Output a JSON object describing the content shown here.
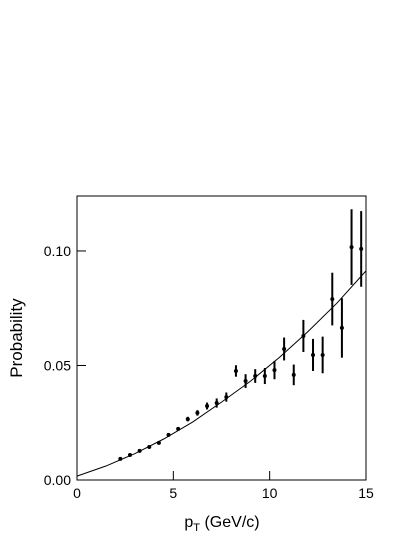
{
  "chart_data": {
    "type": "scatter",
    "x_label": [
      "p",
      "T",
      " (GeV/c)"
    ],
    "y_label": "Probability",
    "xlim": [
      0,
      15
    ],
    "ylim": [
      0,
      0.124
    ],
    "xticks": [
      0,
      5,
      10,
      15
    ],
    "yticks": [
      {
        "value": 0,
        "label": "0.00"
      },
      {
        "value": 0.05,
        "label": "0.05"
      },
      {
        "value": 0.1,
        "label": "0.10"
      }
    ],
    "color": "#000000",
    "points": {
      "x": [
        2.25,
        2.75,
        3.25,
        3.75,
        4.25,
        4.75,
        5.25,
        5.75,
        6.25,
        6.75,
        7.25,
        7.75,
        8.25,
        8.75,
        9.25,
        9.75,
        10.25,
        10.75,
        11.25,
        11.75,
        12.25,
        12.75,
        13.25,
        13.75,
        14.25,
        14.75
      ],
      "values": [
        0.0092,
        0.0109,
        0.0127,
        0.0144,
        0.0162,
        0.0197,
        0.0223,
        0.0266,
        0.0293,
        0.0323,
        0.0336,
        0.0362,
        0.0476,
        0.0432,
        0.0454,
        0.0454,
        0.048,
        0.0572,
        0.0459,
        0.0629,
        0.0546,
        0.0546,
        0.079,
        0.0664,
        0.1017,
        0.1009
      ],
      "errors": [
        0.0005,
        0.0005,
        0.0005,
        0.0005,
        0.0006,
        0.0007,
        0.0008,
        0.001,
        0.0012,
        0.0015,
        0.002,
        0.002,
        0.0025,
        0.003,
        0.003,
        0.0035,
        0.004,
        0.005,
        0.0045,
        0.007,
        0.007,
        0.008,
        0.0115,
        0.013,
        0.0165,
        0.0165
      ]
    },
    "fit": {
      "x": [
        0,
        1.5,
        3,
        4.5,
        6,
        7.5,
        9,
        10.5,
        12,
        13.5,
        15
      ],
      "values": [
        0.0017,
        0.0061,
        0.0115,
        0.0179,
        0.0253,
        0.034,
        0.0431,
        0.0535,
        0.0649,
        0.0773,
        0.0913
      ]
    }
  }
}
